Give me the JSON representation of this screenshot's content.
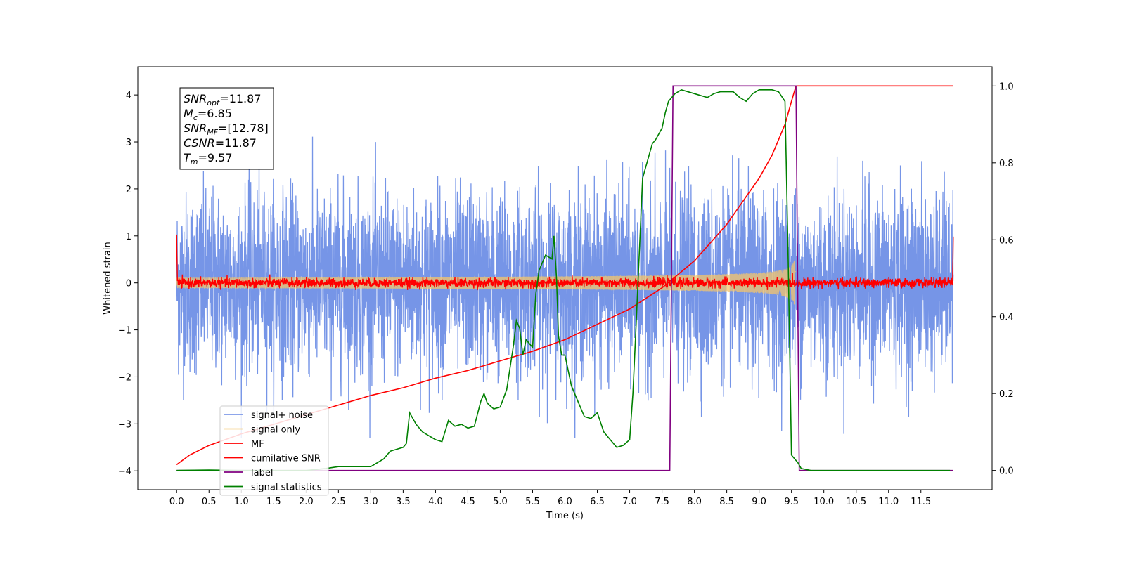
{
  "chart_data": {
    "type": "line",
    "xlabel": "Time (s)",
    "ylabel": "Whitened strain",
    "xlim": [
      -0.6,
      12.6
    ],
    "ylim": [
      -4.4,
      4.6
    ],
    "ylim_right": [
      -0.05,
      1.05
    ],
    "x_ticks": [
      0.0,
      0.5,
      1.0,
      1.5,
      2.0,
      2.5,
      3.0,
      3.5,
      4.0,
      4.5,
      5.0,
      5.5,
      6.0,
      6.5,
      7.0,
      7.5,
      8.0,
      8.5,
      9.0,
      9.5,
      10.0,
      10.5,
      11.0,
      11.5
    ],
    "x_tick_labels": [
      "0.0",
      "0.5",
      "1.0",
      "1.5",
      "2.0",
      "2.5",
      "3.0",
      "3.5",
      "4.0",
      "4.5",
      "5.0",
      "5.5",
      "6.0",
      "6.5",
      "7.0",
      "7.5",
      "8.0",
      "8.5",
      "9.0",
      "9.5",
      "10.0",
      "10.5",
      "11.0",
      "11.5"
    ],
    "y_ticks": [
      -4,
      -3,
      -2,
      -1,
      0,
      1,
      2,
      3,
      4
    ],
    "y_tick_labels": [
      "−4",
      "−3",
      "−2",
      "−1",
      "0",
      "1",
      "2",
      "3",
      "4"
    ],
    "y_right_ticks": [
      0.0,
      0.2,
      0.4,
      0.6,
      0.8,
      1.0
    ],
    "y_right_tick_labels": [
      "0.0",
      "0.2",
      "0.4",
      "0.6",
      "0.8",
      "1.0"
    ],
    "legend_placement": "lower-left",
    "series": [
      {
        "name": "signal+ noise",
        "color": "#6f8fe6",
        "axis": "left",
        "x_range": [
          0.0,
          12.0
        ],
        "noise_std": 0.95,
        "peak_max": 3.3
      },
      {
        "name": "signal only",
        "color": "#f5c66b",
        "axis": "left",
        "x_range": [
          0.0,
          9.57
        ],
        "chirp_end": 9.57,
        "amplitude_at_merger": 0.7
      },
      {
        "name": "MF",
        "color": "#ff0000",
        "axis": "left",
        "x_range": [
          0.0,
          12.0
        ],
        "noise_std": 0.05,
        "edge_values": [
          1.0,
          0.95
        ]
      },
      {
        "name": "cumilative SNR",
        "color": "#ff0000",
        "axis": "right",
        "x": [
          0.0,
          0.2,
          0.5,
          1.0,
          1.5,
          2.0,
          2.5,
          3.0,
          3.5,
          4.0,
          4.5,
          5.0,
          5.5,
          6.0,
          6.5,
          7.0,
          7.5,
          8.0,
          8.5,
          9.0,
          9.2,
          9.4,
          9.5,
          9.57,
          12.0
        ],
        "y": [
          0.015,
          0.04,
          0.065,
          0.095,
          0.12,
          0.145,
          0.17,
          0.195,
          0.215,
          0.24,
          0.26,
          0.285,
          0.31,
          0.34,
          0.38,
          0.42,
          0.475,
          0.545,
          0.64,
          0.76,
          0.82,
          0.9,
          0.96,
          1.0,
          1.0
        ]
      },
      {
        "name": "label",
        "color": "#800080",
        "axis": "right",
        "x": [
          0.0,
          7.62,
          7.67,
          9.57,
          9.62,
          12.0
        ],
        "y": [
          0.0,
          0.0,
          1.0,
          1.0,
          0.0,
          0.0
        ]
      },
      {
        "name": "signal statistics",
        "color": "#008000",
        "axis": "right",
        "x": [
          0.0,
          0.5,
          1.0,
          1.5,
          2.0,
          2.3,
          2.5,
          3.0,
          3.2,
          3.3,
          3.4,
          3.5,
          3.55,
          3.6,
          3.7,
          3.8,
          3.9,
          4.0,
          4.1,
          4.2,
          4.3,
          4.4,
          4.5,
          4.6,
          4.7,
          4.75,
          4.8,
          4.9,
          5.0,
          5.1,
          5.2,
          5.25,
          5.3,
          5.35,
          5.4,
          5.5,
          5.55,
          5.6,
          5.7,
          5.8,
          5.83,
          5.87,
          5.9,
          5.95,
          6.0,
          6.1,
          6.2,
          6.3,
          6.4,
          6.5,
          6.6,
          6.7,
          6.8,
          6.9,
          7.0,
          7.05,
          7.1,
          7.2,
          7.3,
          7.35,
          7.4,
          7.5,
          7.55,
          7.6,
          7.7,
          7.8,
          8.0,
          8.2,
          8.3,
          8.4,
          8.6,
          8.7,
          8.8,
          8.9,
          9.0,
          9.1,
          9.2,
          9.3,
          9.4,
          9.45,
          9.5,
          9.6,
          9.65,
          9.8,
          10.0,
          11.0,
          11.95
        ],
        "y": [
          0.0,
          0.001,
          0.0,
          0.0,
          0.0,
          0.005,
          0.01,
          0.01,
          0.03,
          0.05,
          0.055,
          0.06,
          0.07,
          0.15,
          0.12,
          0.1,
          0.09,
          0.08,
          0.075,
          0.13,
          0.115,
          0.12,
          0.11,
          0.115,
          0.18,
          0.2,
          0.175,
          0.16,
          0.165,
          0.21,
          0.32,
          0.39,
          0.37,
          0.3,
          0.34,
          0.32,
          0.46,
          0.52,
          0.56,
          0.55,
          0.61,
          0.5,
          0.35,
          0.3,
          0.3,
          0.22,
          0.18,
          0.14,
          0.135,
          0.15,
          0.1,
          0.08,
          0.06,
          0.065,
          0.08,
          0.2,
          0.38,
          0.76,
          0.82,
          0.85,
          0.86,
          0.89,
          0.93,
          0.96,
          0.98,
          0.99,
          0.98,
          0.97,
          0.98,
          0.985,
          0.985,
          0.97,
          0.96,
          0.98,
          0.99,
          0.99,
          0.99,
          0.985,
          0.96,
          0.54,
          0.04,
          0.02,
          0.005,
          0.0,
          0.0,
          0.0,
          0.0
        ]
      }
    ],
    "annotation": {
      "lines": [
        {
          "main": "SNR",
          "sub": "opt",
          "value": "=11.87"
        },
        {
          "main": "M",
          "sub": "c",
          "value": "=6.85"
        },
        {
          "main": "SNR",
          "sub": "MF",
          "value": "=[12.78]"
        },
        {
          "main": "CSNR",
          "sub": "",
          "value": "=11.87"
        },
        {
          "main": "T",
          "sub": "m",
          "value": "=9.57"
        }
      ]
    }
  }
}
